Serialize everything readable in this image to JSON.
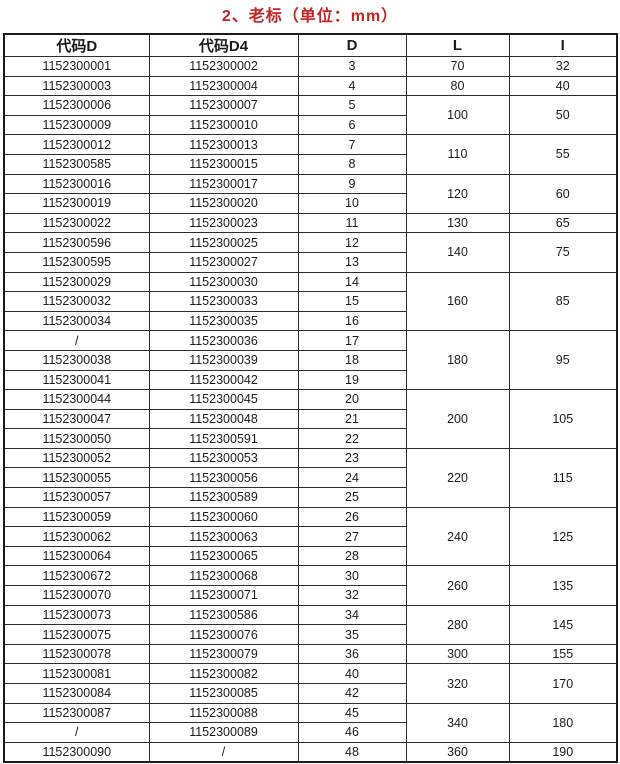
{
  "title": "2、老标（单位：mm）",
  "colors": {
    "title_red": "#c52222",
    "border": "#2e2e2e",
    "text": "#1c1c1c",
    "background": "#ffffff"
  },
  "table": {
    "headers": [
      "代码D",
      "代码D4",
      "D",
      "L",
      "I"
    ],
    "rows": [
      {
        "code_d": "1152300001",
        "code_d4": "1152300002",
        "d": "3",
        "L": "70",
        "I": "32",
        "span": 1
      },
      {
        "code_d": "1152300003",
        "code_d4": "1152300004",
        "d": "4",
        "L": "80",
        "I": "40",
        "span": 1
      },
      {
        "code_d": "1152300006",
        "code_d4": "1152300007",
        "d": "5",
        "L": "100",
        "I": "50",
        "span": 2
      },
      {
        "code_d": "1152300009",
        "code_d4": "1152300010",
        "d": "6"
      },
      {
        "code_d": "1152300012",
        "code_d4": "1152300013",
        "d": "7",
        "L": "110",
        "I": "55",
        "span": 2
      },
      {
        "code_d": "1152300585",
        "code_d4": "1152300015",
        "d": "8"
      },
      {
        "code_d": "1152300016",
        "code_d4": "1152300017",
        "d": "9",
        "L": "120",
        "I": "60",
        "span": 2
      },
      {
        "code_d": "1152300019",
        "code_d4": "1152300020",
        "d": "10"
      },
      {
        "code_d": "1152300022",
        "code_d4": "1152300023",
        "d": "11",
        "L": "130",
        "I": "65",
        "span": 1
      },
      {
        "code_d": "1152300596",
        "code_d4": "1152300025",
        "d": "12",
        "L": "140",
        "I": "75",
        "span": 2
      },
      {
        "code_d": "1152300595",
        "code_d4": "1152300027",
        "d": "13"
      },
      {
        "code_d": "1152300029",
        "code_d4": "1152300030",
        "d": "14",
        "L": "160",
        "I": "85",
        "span": 3
      },
      {
        "code_d": "1152300032",
        "code_d4": "1152300033",
        "d": "15"
      },
      {
        "code_d": "1152300034",
        "code_d4": "1152300035",
        "d": "16"
      },
      {
        "code_d": "/",
        "code_d4": "1152300036",
        "d": "17",
        "L": "180",
        "I": "95",
        "span": 3
      },
      {
        "code_d": "1152300038",
        "code_d4": "1152300039",
        "d": "18"
      },
      {
        "code_d": "1152300041",
        "code_d4": "1152300042",
        "d": "19"
      },
      {
        "code_d": "1152300044",
        "code_d4": "1152300045",
        "d": "20",
        "L": "200",
        "I": "105",
        "span": 3
      },
      {
        "code_d": "1152300047",
        "code_d4": "1152300048",
        "d": "21"
      },
      {
        "code_d": "1152300050",
        "code_d4": "1152300591",
        "d": "22"
      },
      {
        "code_d": "1152300052",
        "code_d4": "1152300053",
        "d": "23",
        "L": "220",
        "I": "115",
        "span": 3
      },
      {
        "code_d": "1152300055",
        "code_d4": "1152300056",
        "d": "24"
      },
      {
        "code_d": "1152300057",
        "code_d4": "1152300589",
        "d": "25"
      },
      {
        "code_d": "1152300059",
        "code_d4": "1152300060",
        "d": "26",
        "L": "240",
        "I": "125",
        "span": 3
      },
      {
        "code_d": "1152300062",
        "code_d4": "1152300063",
        "d": "27"
      },
      {
        "code_d": "1152300064",
        "code_d4": "1152300065",
        "d": "28"
      },
      {
        "code_d": "1152300672",
        "code_d4": "1152300068",
        "d": "30",
        "L": "260",
        "I": "135",
        "span": 2
      },
      {
        "code_d": "1152300070",
        "code_d4": "1152300071",
        "d": "32"
      },
      {
        "code_d": "1152300073",
        "code_d4": "1152300586",
        "d": "34",
        "L": "280",
        "I": "145",
        "span": 2
      },
      {
        "code_d": "1152300075",
        "code_d4": "1152300076",
        "d": "35"
      },
      {
        "code_d": "1152300078",
        "code_d4": "1152300079",
        "d": "36",
        "L": "300",
        "I": "155",
        "span": 1
      },
      {
        "code_d": "1152300081",
        "code_d4": "1152300082",
        "d": "40",
        "L": "320",
        "I": "170",
        "span": 2
      },
      {
        "code_d": "1152300084",
        "code_d4": "1152300085",
        "d": "42"
      },
      {
        "code_d": "1152300087",
        "code_d4": "1152300088",
        "d": "45",
        "L": "340",
        "I": "180",
        "span": 2
      },
      {
        "code_d": "/",
        "code_d4": "1152300089",
        "d": "46"
      },
      {
        "code_d": "1152300090",
        "code_d4": "/",
        "d": "48",
        "L": "360",
        "I": "190",
        "span": 1
      }
    ]
  }
}
